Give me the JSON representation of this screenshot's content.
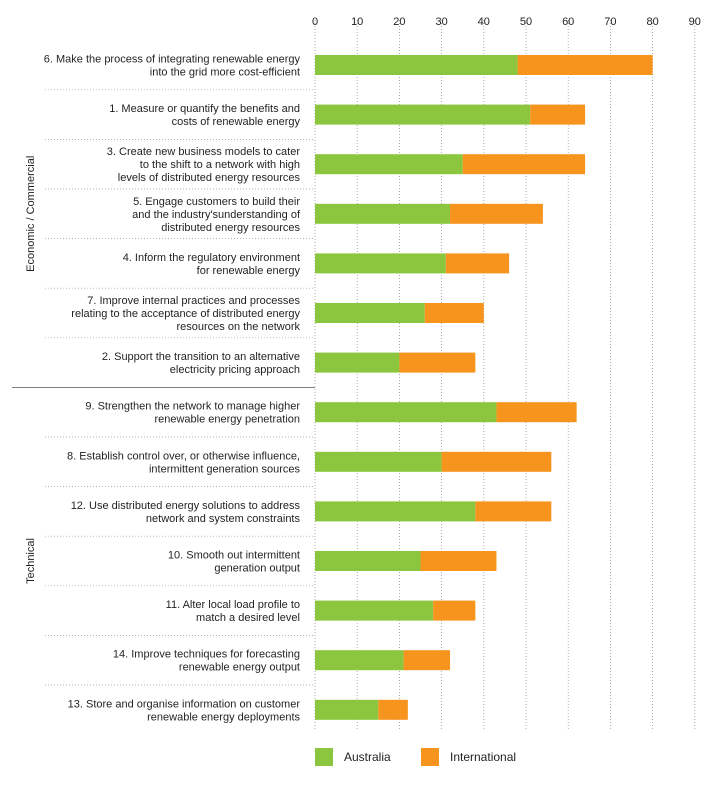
{
  "chart_data": {
    "type": "bar",
    "orientation": "horizontal",
    "stacked": true,
    "title": "",
    "xlabel": "",
    "ylabel": "",
    "xlim": [
      0,
      90
    ],
    "x_ticks": [
      0,
      10,
      20,
      30,
      40,
      50,
      60,
      70,
      80,
      90
    ],
    "grid": true,
    "legend_position": "bottom",
    "groups": [
      {
        "name": "Economic / Commercial",
        "size": 7
      },
      {
        "name": "Technical",
        "size": 7
      }
    ],
    "categories": [
      [
        "6. Make the process of integrating renewable energy",
        "into the grid more cost-efficient"
      ],
      [
        "1. Measure or quantify the benefits and",
        "costs of renewable energy"
      ],
      [
        "3. Create new business models to cater",
        "to the shift to a network with high",
        "levels of distributed energy resources"
      ],
      [
        "5. Engage customers to build their",
        "and the industry'sunderstanding of",
        "distributed energy resources"
      ],
      [
        "4. Inform the regulatory environment",
        "for renewable energy"
      ],
      [
        "7. Improve internal practices and processes",
        "relating to the acceptance of distributed energy",
        "resources on the network"
      ],
      [
        "2. Support the transition to an alternative",
        "electricity pricing approach"
      ],
      [
        "9. Strengthen the network to manage higher",
        "renewable energy penetration"
      ],
      [
        "8. Establish control over, or otherwise influence,",
        "intermittent generation sources"
      ],
      [
        "12. Use distributed energy solutions to address",
        "network and system constraints"
      ],
      [
        "10. Smooth out intermittent",
        "generation output"
      ],
      [
        "11. Alter local load profile to",
        "match a desired level"
      ],
      [
        "14. Improve techniques for forecasting",
        "renewable energy output"
      ],
      [
        "13. Store and organise information on customer",
        "renewable energy deployments"
      ]
    ],
    "series": [
      {
        "name": "Australia",
        "color": "#8cc63f",
        "values": [
          48,
          51,
          35,
          32,
          31,
          26,
          20,
          43,
          30,
          38,
          25,
          28,
          21,
          15
        ]
      },
      {
        "name": "International",
        "color": "#f7941d",
        "values": [
          32,
          13,
          29,
          22,
          15,
          14,
          18,
          19,
          26,
          18,
          18,
          10,
          11,
          7
        ]
      }
    ]
  }
}
